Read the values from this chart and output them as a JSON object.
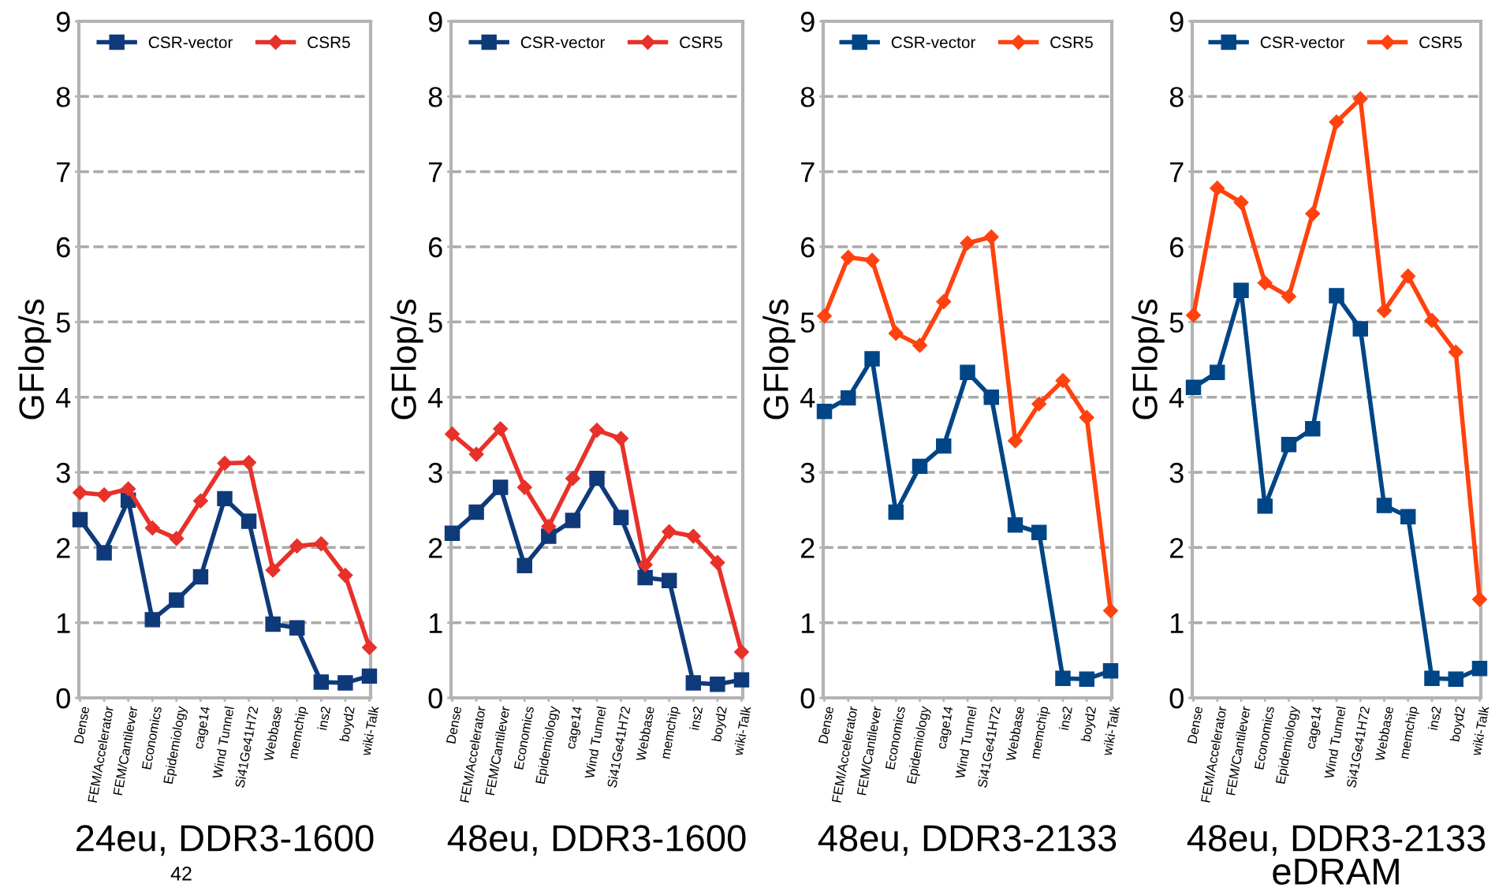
{
  "chart_data": [
    {
      "type": "line",
      "xlabel": "24eu, DDR3-1600",
      "ylabel": "GFlop/s",
      "categories": [
        "Dense",
        "FEM/Accelerator",
        "FEM/Cantilever",
        "Economics",
        "Epidemiology",
        "cage14",
        "Wind Tunnel",
        "Si41Ge41H72",
        "Webbase",
        "memchip",
        "ins2",
        "boyd2",
        "wiki-Talk"
      ],
      "ylim": [
        0,
        9
      ],
      "yticks": [
        0,
        1,
        2,
        3,
        4,
        5,
        6,
        7,
        8,
        9
      ],
      "grid": "y",
      "legend": "top",
      "annotations": [
        "42"
      ],
      "series": [
        {
          "name": "CSR-vector",
          "color": "#0f3a7a",
          "marker": "square",
          "values": [
            2.37,
            1.93,
            2.63,
            1.04,
            1.3,
            1.61,
            2.65,
            2.35,
            0.98,
            0.93,
            0.21,
            0.2,
            0.29
          ]
        },
        {
          "name": "CSR5",
          "color": "#e8312a",
          "marker": "diamond",
          "values": [
            2.73,
            2.7,
            2.78,
            2.26,
            2.12,
            2.62,
            3.12,
            3.13,
            1.7,
            2.02,
            2.05,
            1.63,
            0.67
          ]
        }
      ]
    },
    {
      "type": "line",
      "xlabel": "48eu, DDR3-1600",
      "ylabel": "GFlop/s",
      "categories": [
        "Dense",
        "FEM/Accelerator",
        "FEM/Cantilever",
        "Economics",
        "Epidemiology",
        "cage14",
        "Wind Tunnel",
        "Si41Ge41H72",
        "Webbase",
        "memchip",
        "ins2",
        "boyd2",
        "wiki-Talk"
      ],
      "ylim": [
        0,
        9
      ],
      "yticks": [
        0,
        1,
        2,
        3,
        4,
        5,
        6,
        7,
        8,
        9
      ],
      "grid": "y",
      "legend": "top",
      "series": [
        {
          "name": "CSR-vector",
          "color": "#0f3a7a",
          "marker": "square",
          "values": [
            2.19,
            2.47,
            2.8,
            1.76,
            2.15,
            2.36,
            2.92,
            2.4,
            1.6,
            1.56,
            0.2,
            0.18,
            0.24
          ]
        },
        {
          "name": "CSR5",
          "color": "#e8312a",
          "marker": "diamond",
          "values": [
            3.51,
            3.24,
            3.58,
            2.8,
            2.28,
            2.92,
            3.56,
            3.45,
            1.77,
            2.21,
            2.15,
            1.8,
            0.61
          ]
        }
      ]
    },
    {
      "type": "line",
      "xlabel": "48eu, DDR3-2133",
      "ylabel": "GFlop/s",
      "categories": [
        "Dense",
        "FEM/Accelerator",
        "FEM/Cantilever",
        "Economics",
        "Epidemiology",
        "cage14",
        "Wind Tunnel",
        "Si41Ge41H72",
        "Webbase",
        "memchip",
        "ins2",
        "boyd2",
        "wiki-Talk"
      ],
      "ylim": [
        0,
        9
      ],
      "yticks": [
        0,
        1,
        2,
        3,
        4,
        5,
        6,
        7,
        8,
        9
      ],
      "grid": "y",
      "legend": "top",
      "series": [
        {
          "name": "CSR-vector",
          "color": "#004586",
          "marker": "square",
          "values": [
            3.81,
            3.99,
            4.51,
            2.47,
            3.08,
            3.35,
            4.33,
            4.0,
            2.3,
            2.2,
            0.26,
            0.25,
            0.36
          ]
        },
        {
          "name": "CSR5",
          "color": "#ff420e",
          "marker": "diamond",
          "values": [
            5.08,
            5.86,
            5.82,
            4.85,
            4.69,
            5.27,
            6.05,
            6.13,
            3.42,
            3.91,
            4.22,
            3.73,
            1.16
          ]
        }
      ]
    },
    {
      "type": "line",
      "xlabel": "48eu, DDR3-2133\neDRAM",
      "ylabel": "GFlop/s",
      "categories": [
        "Dense",
        "FEM/Accelerator",
        "FEM/Cantilever",
        "Economics",
        "Epidemiology",
        "cage14",
        "Wind Tunnel",
        "Si41Ge41H72",
        "Webbase",
        "memchip",
        "ins2",
        "boyd2",
        "wiki-Talk"
      ],
      "ylim": [
        0,
        9
      ],
      "yticks": [
        0,
        1,
        2,
        3,
        4,
        5,
        6,
        7,
        8,
        9
      ],
      "grid": "y",
      "legend": "top",
      "series": [
        {
          "name": "CSR-vector",
          "color": "#004586",
          "marker": "square",
          "values": [
            4.13,
            4.33,
            5.42,
            2.55,
            3.37,
            3.58,
            5.35,
            4.91,
            2.56,
            2.41,
            0.26,
            0.25,
            0.39
          ]
        },
        {
          "name": "CSR5",
          "color": "#ff420e",
          "marker": "diamond",
          "values": [
            5.09,
            6.78,
            6.59,
            5.52,
            5.34,
            6.44,
            7.66,
            7.97,
            5.15,
            5.61,
            5.02,
            4.6,
            1.31
          ]
        }
      ]
    }
  ]
}
